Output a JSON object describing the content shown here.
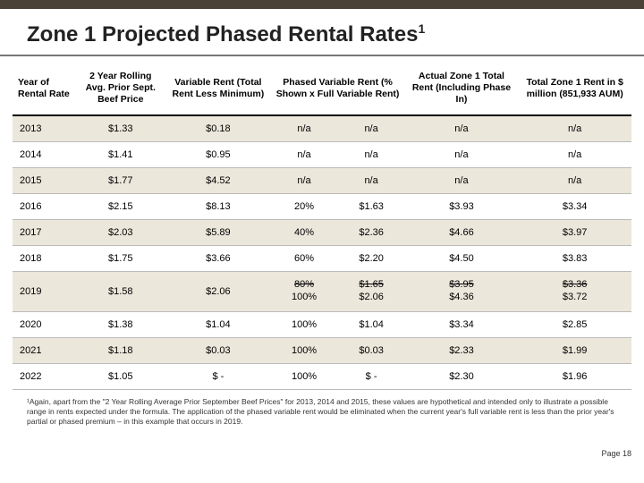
{
  "title_html": "Zone 1 Projected Phased Rental Rates<sup>1</sup>",
  "columns": [
    "Year of Rental Rate",
    "2 Year Rolling Avg. Prior Sept. Beef Price",
    "Variable Rent (Total Rent Less Minimum)",
    "Phased Variable Rent (% Shown x Full Variable Rent)",
    "",
    "Actual Zone 1 Total Rent (Including Phase In)",
    "Total Zone 1 Rent in $ million (851,933 AUM)"
  ],
  "rows": [
    {
      "band": true,
      "year": "2013",
      "beef": "$1.33",
      "var": "$0.18",
      "pct": "n/a",
      "fv": "n/a",
      "act": "n/a",
      "tot": "n/a"
    },
    {
      "band": false,
      "year": "2014",
      "beef": "$1.41",
      "var": "$0.95",
      "pct": "n/a",
      "fv": "n/a",
      "act": "n/a",
      "tot": "n/a"
    },
    {
      "band": true,
      "year": "2015",
      "beef": "$1.77",
      "var": "$4.52",
      "pct": "n/a",
      "fv": "n/a",
      "act": "n/a",
      "tot": "n/a"
    },
    {
      "band": false,
      "year": "2016",
      "beef": "$2.15",
      "var": "$8.13",
      "pct": "20%",
      "fv": "$1.63",
      "act": "$3.93",
      "tot": "$3.34"
    },
    {
      "band": true,
      "year": "2017",
      "beef": "$2.03",
      "var": "$5.89",
      "pct": "40%",
      "fv": "$2.36",
      "act": "$4.66",
      "tot": "$3.97"
    },
    {
      "band": false,
      "year": "2018",
      "beef": "$1.75",
      "var": "$3.66",
      "pct": "60%",
      "fv": "$2.20",
      "act": "$4.50",
      "tot": "$3.83"
    },
    {
      "band": true,
      "year": "2019",
      "beef": "$1.58",
      "var": "$2.06",
      "pct_strike": "80%",
      "pct": "100%",
      "fv_strike": "$1.65",
      "fv": "$2.06",
      "act_strike": "$3.95",
      "act": "$4.36",
      "tot_strike": "$3.36",
      "tot": "$3.72"
    },
    {
      "band": false,
      "year": "2020",
      "beef": "$1.38",
      "var": "$1.04",
      "pct": "100%",
      "fv": "$1.04",
      "act": "$3.34",
      "tot": "$2.85"
    },
    {
      "band": true,
      "year": "2021",
      "beef": "$1.18",
      "var": "$0.03",
      "pct": "100%",
      "fv": "$0.03",
      "act": "$2.33",
      "tot": "$1.99"
    },
    {
      "band": false,
      "year": "2022",
      "beef": "$1.05",
      "var": "$ -",
      "pct": "100%",
      "fv": "$   -",
      "act": "$2.30",
      "tot": "$1.96"
    }
  ],
  "footnote": "¹Again, apart from the \"2 Year Rolling Average Prior September Beef Prices\" for 2013, 2014 and 2015, these values are hypothetical and intended only to illustrate a possible range in rents expected under the formula. The application of the phased variable rent would be eliminated when the current year's full variable rent is less than the prior year's partial or phased premium – in this example that occurs in 2019.",
  "page": "Page 18",
  "colors": {
    "band": "#ece7db",
    "topbar": "#4a4236"
  }
}
